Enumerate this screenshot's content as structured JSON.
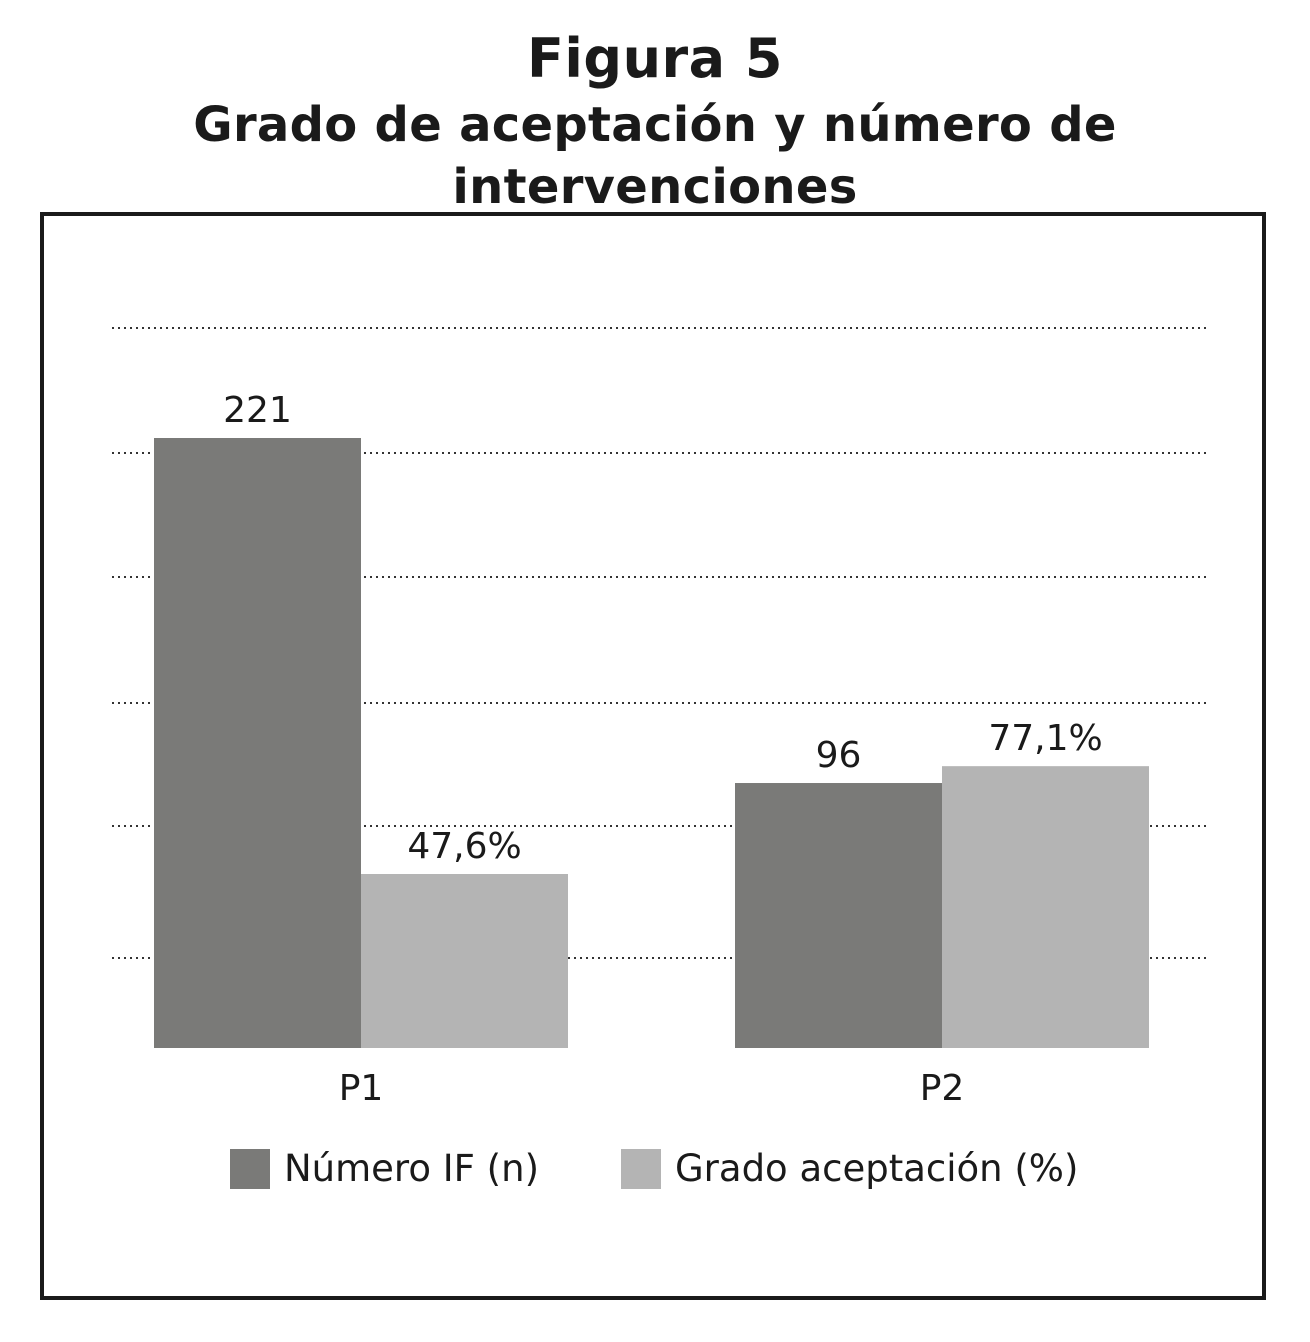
{
  "figure": {
    "number_label": "Figura 5",
    "title": "Grado de aceptación y número de intervenciones"
  },
  "colors": {
    "numero": "#7a7a78",
    "grado": "#b4b4b4",
    "gridline": "#333333",
    "text": "#1a1a1a"
  },
  "chart_data": {
    "type": "bar",
    "title": "Grado de aceptación y número de intervenciones",
    "categories": [
      "P1",
      "P2"
    ],
    "series": [
      {
        "name": "Número IF (n)",
        "values": [
          221,
          96
        ],
        "labels": [
          "221",
          "96"
        ],
        "color": "#7a7a78"
      },
      {
        "name": "Grado aceptación (%)",
        "values": [
          47.6,
          77.1
        ],
        "labels": [
          "47,6%",
          "77,1%"
        ],
        "color": "#b4b4b4"
      }
    ],
    "grid": true,
    "gridline_count": 6,
    "legend_position": "bottom",
    "xlabel": "",
    "ylabel": ""
  },
  "legend": {
    "items": [
      {
        "label": "Número IF (n)",
        "color": "#7a7a78"
      },
      {
        "label": "Grado aceptación (%)",
        "color": "#b4b4b4"
      }
    ]
  }
}
